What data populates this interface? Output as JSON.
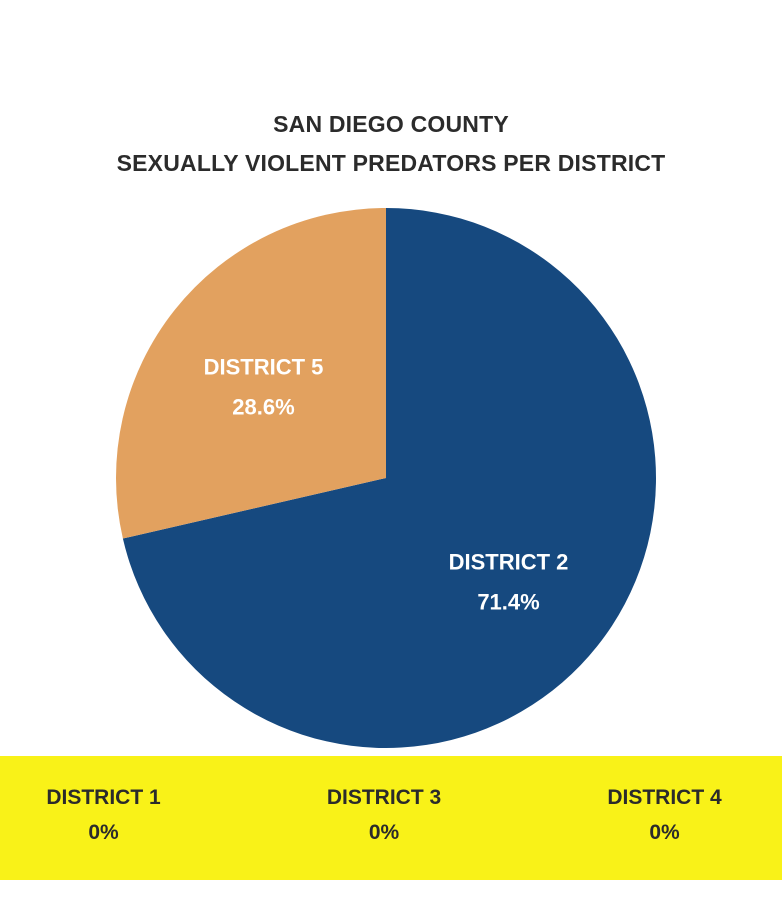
{
  "colors": {
    "district_2": "#16497f",
    "district_5": "#e2a15f",
    "band_background": "#f9f218",
    "label_text": "#ffffff"
  },
  "chart_data": {
    "type": "pie",
    "title": "SAN DIEGO COUNTY",
    "subtitle": "SEXUALLY VIOLENT PREDATORS PER DISTRICT",
    "slices": [
      {
        "name": "DISTRICT 2",
        "value": 71.4,
        "label": "71.4%"
      },
      {
        "name": "DISTRICT 5",
        "value": 28.6,
        "label": "28.6%"
      }
    ],
    "zero_districts": [
      {
        "name": "DISTRICT 1",
        "value": 0,
        "label": "0%"
      },
      {
        "name": "DISTRICT 3",
        "value": 0,
        "label": "0%"
      },
      {
        "name": "DISTRICT 4",
        "value": 0,
        "label": "0%"
      }
    ]
  }
}
